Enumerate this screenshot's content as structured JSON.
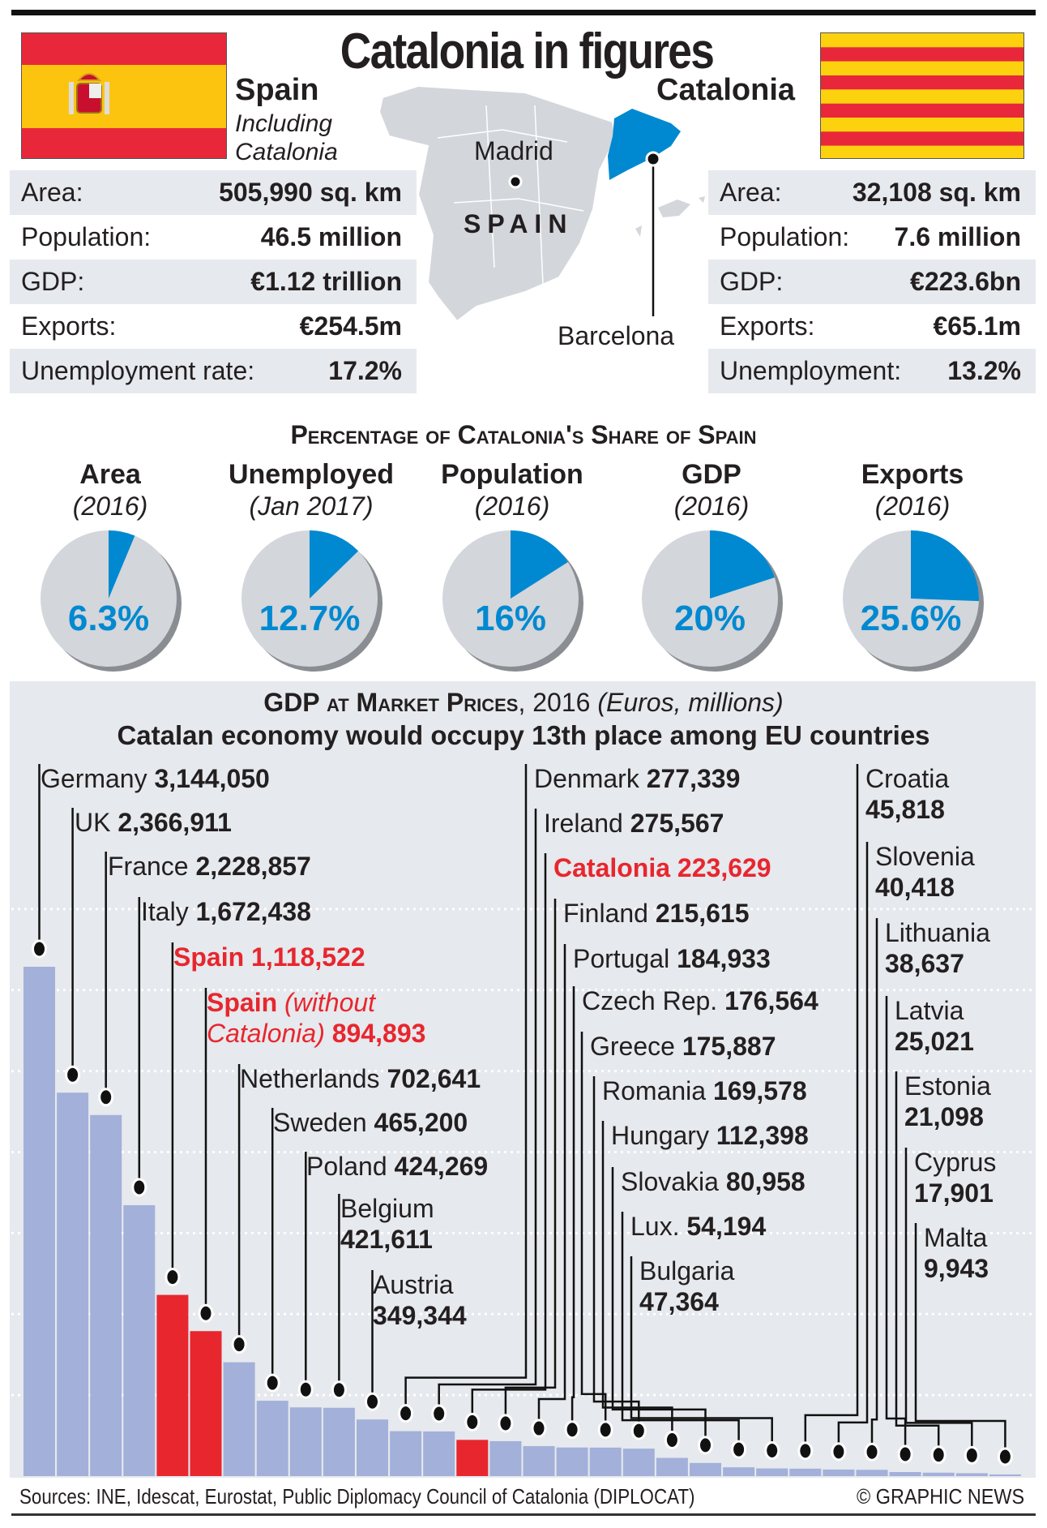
{
  "title": "Catalonia in figures",
  "spain": {
    "heading": "Spain",
    "sub1": "Including",
    "sub2": "Catalonia",
    "rows": [
      {
        "label": "Area:",
        "value": "505,990 sq. km"
      },
      {
        "label": "Population:",
        "value": "46.5 million"
      },
      {
        "label": "GDP:",
        "value": "€1.12 trillion"
      },
      {
        "label": "Exports:",
        "value": "€254.5m"
      },
      {
        "label": "Unemployment rate:",
        "value": "17.2%"
      }
    ]
  },
  "catalonia": {
    "heading": "Catalonia",
    "rows": [
      {
        "label": "Area:",
        "value": "32,108 sq. km"
      },
      {
        "label": "Population:",
        "value": "7.6 million"
      },
      {
        "label": "GDP:",
        "value": "€223.6bn"
      },
      {
        "label": "Exports:",
        "value": "€65.1m"
      },
      {
        "label": "Unemployment:",
        "value": "13.2%"
      }
    ]
  },
  "map": {
    "madrid": "Madrid",
    "country": "SPAIN",
    "barcelona": "Barcelona"
  },
  "colors": {
    "blue": "#0089d0",
    "red": "#e8262e",
    "bar": "#a3b0d9",
    "pie_gray": "#d3d6db"
  },
  "pies": {
    "heading": "Percentage of Catalonia's Share of Spain",
    "items": [
      {
        "title": "Area",
        "period": "(2016)",
        "value": 6.3,
        "label": "6.3%"
      },
      {
        "title": "Unemployed",
        "period": "(Jan 2017)",
        "value": 12.7,
        "label": "12.7%"
      },
      {
        "title": "Population",
        "period": "(2016)",
        "value": 16,
        "label": "16%"
      },
      {
        "title": "GDP",
        "period": "(2016)",
        "value": 20,
        "label": "20%"
      },
      {
        "title": "Exports",
        "period": "(2016)",
        "value": 25.6,
        "label": "25.6%"
      }
    ]
  },
  "chart_data": {
    "type": "bar",
    "title": "GDP at Market Prices",
    "title_suffix": ", 2016 ",
    "units": "(Euros, millions)",
    "subtitle": "Catalan economy would occupy 13th place among EU countries",
    "ylim": [
      0,
      3500000
    ],
    "grid": true,
    "categories": [
      "Germany",
      "UK",
      "France",
      "Italy",
      "Spain",
      "Spain",
      "Netherlands",
      "Sweden",
      "Poland",
      "Belgium",
      "Austria",
      "Denmark",
      "Ireland",
      "Catalonia",
      "Finland",
      "Portugal",
      "Czech Rep.",
      "Greece",
      "Romania",
      "Hungary",
      "Slovakia",
      "Lux.",
      "Bulgaria",
      "Croatia",
      "Slovenia",
      "Lithuania",
      "Latvia",
      "Estonia",
      "Cyprus",
      "Malta"
    ],
    "category_notes": {
      "5": "(without Catalonia)"
    },
    "values": [
      3144050,
      2366911,
      2228857,
      1672438,
      1118522,
      894893,
      702641,
      465200,
      424269,
      421611,
      349344,
      277339,
      275567,
      223629,
      215615,
      184933,
      176564,
      175887,
      169578,
      112398,
      80958,
      54194,
      47364,
      45818,
      40418,
      38637,
      25021,
      21098,
      17901,
      9943
    ],
    "value_labels": [
      "3,144,050",
      "2,366,911",
      "2,228,857",
      "1,672,438",
      "1,118,522",
      "894,893",
      "702,641",
      "465,200",
      "424,269",
      "421,611",
      "349,344",
      "277,339",
      "275,567",
      "223,629",
      "215,615",
      "184,933",
      "176,564",
      "175,887",
      "169,578",
      "112,398",
      "80,958",
      "54,194",
      "47,364",
      "45,818",
      "40,418",
      "38,637",
      "25,021",
      "21,098",
      "17,901",
      "9,943"
    ],
    "highlighted": [
      4,
      5,
      13
    ]
  },
  "footer": {
    "sources": "Sources: INE, Idescat, Eurostat, Public Diplomacy Council of Catalonia (DIPLOCAT)",
    "copyright": "© GRAPHIC NEWS"
  }
}
